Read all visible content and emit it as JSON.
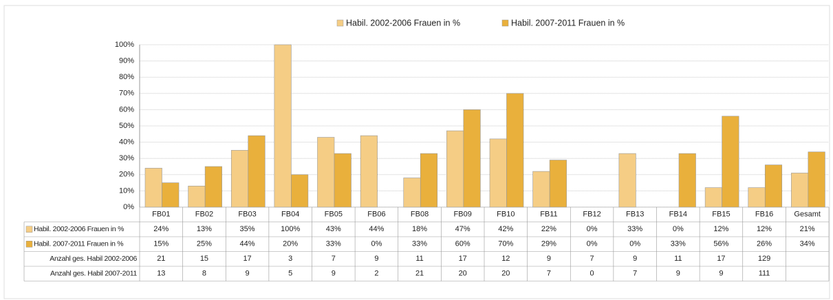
{
  "chart_data": {
    "type": "bar",
    "categories": [
      "FB01",
      "FB02",
      "FB03",
      "FB04",
      "FB05",
      "FB06",
      "FB08",
      "FB09",
      "FB10",
      "FB11",
      "FB12",
      "FB13",
      "FB14",
      "FB15",
      "FB16",
      "Gesamt"
    ],
    "series": [
      {
        "name": "Habil. 2002-2006 Frauen in %",
        "color": "#f5cd85",
        "values": [
          24,
          13,
          35,
          100,
          43,
          44,
          18,
          47,
          42,
          22,
          0,
          33,
          0,
          12,
          12,
          21
        ],
        "value_labels": [
          "24%",
          "13%",
          "35%",
          "100%",
          "43%",
          "44%",
          "18%",
          "47%",
          "42%",
          "22%",
          "0%",
          "33%",
          "0%",
          "12%",
          "12%",
          "21%"
        ]
      },
      {
        "name": "Habil. 2007-2011 Frauen in %",
        "color": "#e9b03c",
        "values": [
          15,
          25,
          44,
          20,
          33,
          0,
          33,
          60,
          70,
          29,
          0,
          0,
          33,
          56,
          26,
          34
        ],
        "value_labels": [
          "15%",
          "25%",
          "44%",
          "20%",
          "33%",
          "0%",
          "33%",
          "60%",
          "70%",
          "29%",
          "0%",
          "0%",
          "33%",
          "56%",
          "26%",
          "34%"
        ]
      }
    ],
    "table_rows": [
      {
        "label": "Anzahl ges. Habil 2002-2006",
        "values": [
          21,
          15,
          17,
          3,
          7,
          9,
          11,
          17,
          12,
          9,
          7,
          9,
          11,
          17,
          129,
          null
        ]
      },
      {
        "label": "Anzahl ges. Habil 2007-2011",
        "values": [
          13,
          8,
          9,
          5,
          9,
          2,
          21,
          20,
          20,
          7,
          0,
          7,
          9,
          9,
          111,
          null
        ]
      }
    ],
    "ylim": [
      0,
      100
    ],
    "yticks": [
      {
        "value": 0,
        "label": "0%"
      },
      {
        "value": 10,
        "label": "10%"
      },
      {
        "value": 20,
        "label": "20%"
      },
      {
        "value": 30,
        "label": "30%"
      },
      {
        "value": 40,
        "label": "40%"
      },
      {
        "value": 50,
        "label": "50%"
      },
      {
        "value": 60,
        "label": "60%"
      },
      {
        "value": 70,
        "label": "70%"
      },
      {
        "value": 80,
        "label": "80%"
      },
      {
        "value": 90,
        "label": "90%"
      },
      {
        "value": 100,
        "label": "100%"
      }
    ],
    "grid": true,
    "legend": "top"
  }
}
